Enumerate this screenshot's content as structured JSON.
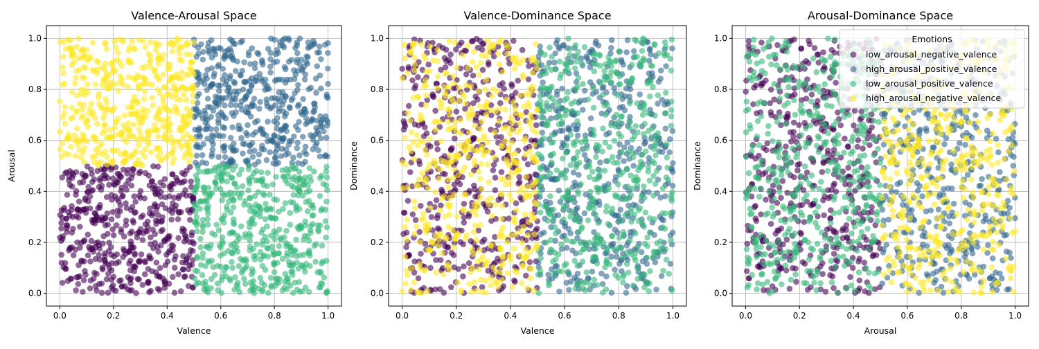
{
  "chart_data": [
    {
      "type": "scatter",
      "title": "Valence-Arousal Space",
      "xlabel": "Valence",
      "ylabel": "Arousal",
      "x_key": "valence",
      "y_key": "arousal",
      "xlim": [
        -0.05,
        1.05
      ],
      "ylim": [
        -0.05,
        1.05
      ],
      "xticks": [
        "0.0",
        "0.2",
        "0.4",
        "0.6",
        "0.8",
        "1.0"
      ],
      "yticks": [
        "0.0",
        "0.2",
        "0.4",
        "0.6",
        "0.8",
        "1.0"
      ],
      "grid": true,
      "legend": false
    },
    {
      "type": "scatter",
      "title": "Valence-Dominance Space",
      "xlabel": "Valence",
      "ylabel": "Dominance",
      "x_key": "valence",
      "y_key": "dominance",
      "xlim": [
        -0.05,
        1.05
      ],
      "ylim": [
        -0.05,
        1.05
      ],
      "xticks": [
        "0.0",
        "0.2",
        "0.4",
        "0.6",
        "0.8",
        "1.0"
      ],
      "yticks": [
        "0.0",
        "0.2",
        "0.4",
        "0.6",
        "0.8",
        "1.0"
      ],
      "grid": true,
      "legend": false
    },
    {
      "type": "scatter",
      "title": "Arousal-Dominance Space",
      "xlabel": "Arousal",
      "ylabel": "Dominance",
      "x_key": "arousal",
      "y_key": "dominance",
      "xlim": [
        -0.05,
        1.05
      ],
      "ylim": [
        -0.05,
        1.05
      ],
      "xticks": [
        "0.0",
        "0.2",
        "0.4",
        "0.6",
        "0.8",
        "1.0"
      ],
      "yticks": [
        "0.0",
        "0.2",
        "0.4",
        "0.6",
        "0.8",
        "1.0"
      ],
      "grid": true,
      "legend": true,
      "legend_placement": "top-right"
    }
  ],
  "legend": {
    "title": "Emotions",
    "entries": [
      {
        "name": "low_arousal_negative_valence",
        "color": "#440154"
      },
      {
        "name": "high_arousal_positive_valence",
        "color": "#31688e"
      },
      {
        "name": "low_arousal_positive_valence",
        "color": "#35b779"
      },
      {
        "name": "high_arousal_negative_valence",
        "color": "#fde725"
      }
    ]
  },
  "series": [
    {
      "name": "low_arousal_negative_valence",
      "color": "#440154",
      "valence_range": [
        0.0,
        0.5
      ],
      "arousal_range": [
        0.0,
        0.5
      ],
      "dominance_range": [
        0.0,
        1.0
      ],
      "count": 500
    },
    {
      "name": "high_arousal_positive_valence",
      "color": "#31688e",
      "valence_range": [
        0.5,
        1.0
      ],
      "arousal_range": [
        0.5,
        1.0
      ],
      "dominance_range": [
        0.0,
        1.0
      ],
      "count": 500
    },
    {
      "name": "low_arousal_positive_valence",
      "color": "#35b779",
      "valence_range": [
        0.5,
        1.0
      ],
      "arousal_range": [
        0.0,
        0.5
      ],
      "dominance_range": [
        0.0,
        1.0
      ],
      "count": 500
    },
    {
      "name": "high_arousal_negative_valence",
      "color": "#fde725",
      "valence_range": [
        0.0,
        0.5
      ],
      "arousal_range": [
        0.5,
        1.0
      ],
      "dominance_range": [
        0.0,
        1.0
      ],
      "count": 500
    }
  ]
}
